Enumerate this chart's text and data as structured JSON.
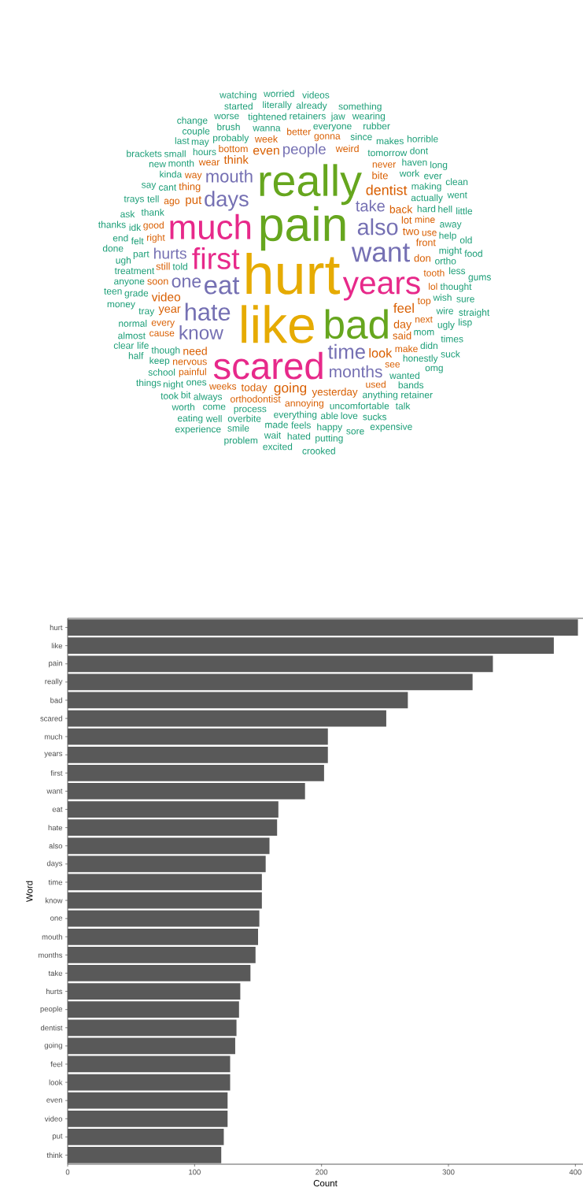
{
  "chart_data": [
    {
      "type": "other",
      "categories": [
        "hurt",
        "like",
        "pain",
        "really",
        "bad",
        "scared",
        "much",
        "years",
        "first",
        "want",
        "eat",
        "hate",
        "also",
        "days",
        "time",
        "know",
        "one",
        "mouth",
        "months",
        "take",
        "hurts",
        "people",
        "dentist",
        "going",
        "feel",
        "look",
        "even",
        "video",
        "put",
        "think",
        "year",
        "day",
        "need",
        "back",
        "two",
        "today",
        "yesterday",
        "said",
        "don",
        "bite",
        "thing",
        "lot",
        "still",
        "soon",
        "front",
        "weird",
        "week",
        "nervous",
        "bottom",
        "orthodontist",
        "top",
        "wear",
        "annoying",
        "way",
        "ago",
        "weeks",
        "every",
        "never",
        "gonna",
        "make",
        "better",
        "tooth",
        "right",
        "mine",
        "painful",
        "good",
        "cause",
        "used",
        "see",
        "next",
        "lol",
        "use",
        "wanna",
        "mom",
        "probably",
        "process",
        "everything",
        "uncomfortable",
        "actually",
        "told",
        "tomorrow",
        "hard",
        "everyone",
        "hours",
        "cant",
        "thank",
        "though",
        "treatment",
        "part",
        "ortho",
        "ones",
        "work",
        "since",
        "month",
        "tray",
        "always",
        "kinda",
        "anything",
        "wanted",
        "grade",
        "wish",
        "honestly",
        "making",
        "might",
        "retainers",
        "tightened",
        "able",
        "didn",
        "wire",
        "brush",
        "tell",
        "overbite",
        "anyone",
        "felt",
        "come",
        "made",
        "may",
        "keep",
        "help",
        "feels",
        "thought",
        "haven",
        "makes",
        "love",
        "away",
        "ugly",
        "less",
        "small",
        "normal",
        "hell",
        "jaw",
        "school",
        "happy",
        "bands",
        "say",
        "rubber",
        "already",
        "idk",
        "literally",
        "worse",
        "ugh",
        "night",
        "couple",
        "ever",
        "money",
        "almost",
        "new",
        "life",
        "trays",
        "ask",
        "end",
        "bit",
        "well",
        "smile",
        "last",
        "wait",
        "hated",
        "sucks",
        "wearing",
        "something",
        "omg",
        "times",
        "sure",
        "started",
        "old",
        "done",
        "dont",
        "teen",
        "half",
        "worth",
        "putting",
        "took",
        "sore",
        "retainer",
        "videos",
        "worried",
        "change",
        "thanks",
        "talk",
        "suck",
        "lisp",
        "problem",
        "went",
        "food",
        "little",
        "long",
        "clear",
        "excited",
        "straight",
        "experience",
        "eating",
        "things",
        "watching",
        "horrible",
        "brackets",
        "crooked",
        "expensive",
        "gums",
        "clean"
      ],
      "colors": [
        "#e6ab02",
        "#e6ab02",
        "#66a61e",
        "#66a61e",
        "#66a61e",
        "#e7298a",
        "#e7298a",
        "#e7298a",
        "#e7298a",
        "#7570b3",
        "#7570b3",
        "#7570b3",
        "#7570b3",
        "#7570b3",
        "#7570b3",
        "#7570b3",
        "#7570b3",
        "#7570b3",
        "#7570b3",
        "#7570b3",
        "#7570b3",
        "#7570b3",
        "#d95f02",
        "#d95f02",
        "#d95f02",
        "#d95f02",
        "#d95f02",
        "#d95f02",
        "#d95f02",
        "#d95f02",
        "#d95f02",
        "#d95f02",
        "#d95f02",
        "#d95f02",
        "#d95f02",
        "#d95f02",
        "#d95f02",
        "#d95f02",
        "#d95f02",
        "#d95f02",
        "#d95f02",
        "#d95f02",
        "#d95f02",
        "#d95f02",
        "#d95f02",
        "#d95f02",
        "#d95f02",
        "#d95f02",
        "#d95f02",
        "#d95f02",
        "#d95f02",
        "#d95f02",
        "#d95f02",
        "#d95f02",
        "#d95f02",
        "#d95f02",
        "#d95f02",
        "#d95f02",
        "#d95f02",
        "#d95f02",
        "#d95f02",
        "#d95f02",
        "#d95f02",
        "#d95f02",
        "#d95f02",
        "#d95f02",
        "#d95f02",
        "#d95f02",
        "#d95f02",
        "#d95f02",
        "#d95f02",
        "#d95f02",
        "#1b9e77",
        "#1b9e77",
        "#1b9e77",
        "#1b9e77",
        "#1b9e77",
        "#1b9e77",
        "#1b9e77",
        "#1b9e77",
        "#1b9e77",
        "#1b9e77",
        "#1b9e77",
        "#1b9e77",
        "#1b9e77",
        "#1b9e77",
        "#1b9e77",
        "#1b9e77",
        "#1b9e77",
        "#1b9e77",
        "#1b9e77",
        "#1b9e77",
        "#1b9e77",
        "#1b9e77",
        "#1b9e77",
        "#1b9e77",
        "#1b9e77",
        "#1b9e77",
        "#1b9e77",
        "#1b9e77",
        "#1b9e77",
        "#1b9e77",
        "#1b9e77",
        "#1b9e77",
        "#1b9e77",
        "#1b9e77",
        "#1b9e77",
        "#1b9e77",
        "#1b9e77",
        "#1b9e77",
        "#1b9e77",
        "#1b9e77",
        "#1b9e77",
        "#1b9e77",
        "#1b9e77",
        "#1b9e77",
        "#1b9e77",
        "#1b9e77",
        "#1b9e77",
        "#1b9e77",
        "#1b9e77",
        "#1b9e77",
        "#1b9e77",
        "#1b9e77",
        "#1b9e77",
        "#1b9e77",
        "#1b9e77",
        "#1b9e77",
        "#1b9e77",
        "#1b9e77",
        "#1b9e77",
        "#1b9e77",
        "#1b9e77",
        "#1b9e77",
        "#1b9e77",
        "#1b9e77",
        "#1b9e77",
        "#1b9e77",
        "#1b9e77",
        "#1b9e77",
        "#1b9e77",
        "#1b9e77",
        "#1b9e77",
        "#1b9e77",
        "#1b9e77",
        "#1b9e77",
        "#1b9e77",
        "#1b9e77",
        "#1b9e77",
        "#1b9e77",
        "#1b9e77",
        "#1b9e77",
        "#1b9e77",
        "#1b9e77",
        "#1b9e77",
        "#1b9e77",
        "#1b9e77",
        "#1b9e77",
        "#1b9e77",
        "#1b9e77",
        "#1b9e77",
        "#1b9e77",
        "#1b9e77",
        "#1b9e77",
        "#1b9e77",
        "#1b9e77",
        "#1b9e77",
        "#1b9e77",
        "#1b9e77",
        "#1b9e77",
        "#1b9e77",
        "#1b9e77",
        "#1b9e77",
        "#1b9e77",
        "#1b9e77",
        "#1b9e77",
        "#1b9e77",
        "#1b9e77",
        "#1b9e77",
        "#1b9e77",
        "#1b9e77",
        "#1b9e77",
        "#1b9e77",
        "#1b9e77",
        "#1b9e77",
        "#1b9e77",
        "#1b9e77",
        "#1b9e77",
        "#1b9e77",
        "#1b9e77",
        "#1b9e77",
        "#1b9e77",
        "#1b9e77",
        "#1b9e77",
        "#1b9e77",
        "#1b9e77",
        "#1b9e77",
        "#1b9e77",
        "#1b9e77",
        "#1b9e77",
        "#1b9e77",
        "#1b9e77",
        "#1b9e77"
      ]
    },
    {
      "type": "bar",
      "orientation": "horizontal",
      "xlabel": "Count",
      "ylabel": "Word",
      "color": "#595959",
      "categories": [
        "hurt",
        "like",
        "pain",
        "really",
        "bad",
        "scared",
        "much",
        "years",
        "first",
        "want",
        "eat",
        "hate",
        "also",
        "days",
        "time",
        "know",
        "one",
        "mouth",
        "months",
        "take",
        "hurts",
        "people",
        "dentist",
        "going",
        "feel",
        "look",
        "even",
        "video",
        "put",
        "think"
      ],
      "values": [
        402,
        383,
        335,
        319,
        268,
        251,
        205,
        205,
        202,
        187,
        166,
        165,
        159,
        156,
        153,
        153,
        151,
        150,
        148,
        144,
        136,
        135,
        133,
        132,
        128,
        128,
        126,
        126,
        123,
        121
      ],
      "xlim": [
        0,
        406
      ],
      "xticks": [
        0,
        100,
        200,
        300,
        400
      ]
    }
  ]
}
